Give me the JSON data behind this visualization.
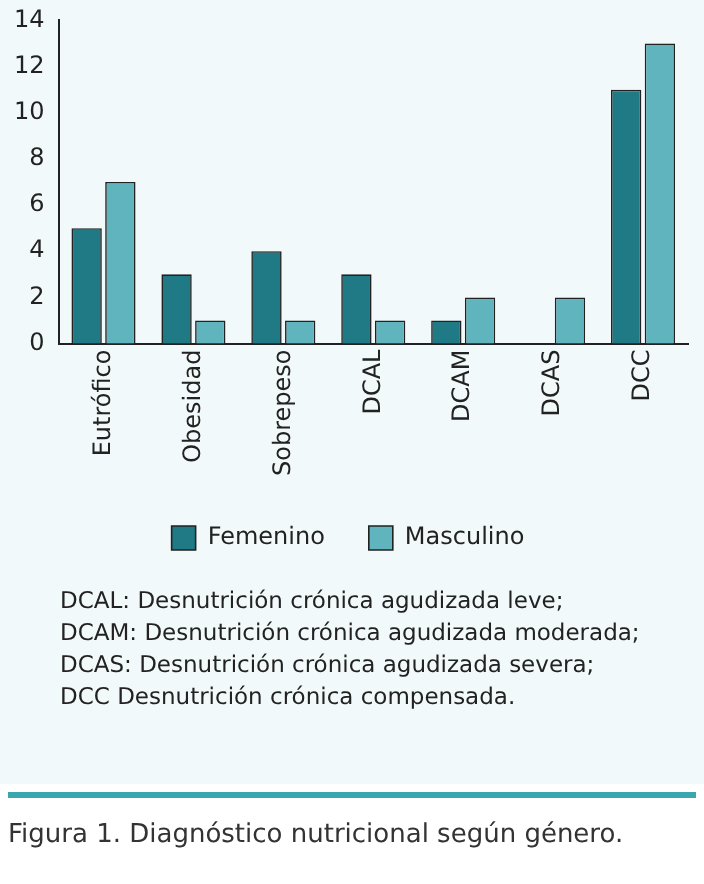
{
  "chart_data": {
    "type": "bar",
    "title": "Figura 1. Diagnóstico nutricional según género.",
    "categories": [
      "Eutrófico",
      "Obesidad",
      "Sobrepeso",
      "DCAL",
      "DCAM",
      "DCAS",
      "DCC"
    ],
    "series": [
      {
        "name": "Femenino",
        "color": "#1f7a86",
        "values": [
          5,
          3,
          4,
          3,
          1,
          0,
          11
        ]
      },
      {
        "name": "Masculino",
        "color": "#5fb4be",
        "values": [
          7,
          1,
          1,
          1,
          2,
          2,
          13
        ]
      }
    ],
    "ylim": [
      0,
      14
    ],
    "yticks": [
      0,
      2,
      4,
      6,
      8,
      10,
      12,
      14
    ],
    "grid": false,
    "legend": "bottom",
    "annotations": [
      "DCAL: Desnutrición crónica agudizada leve;",
      "DCAM: Desnutrición crónica agudizada moderada;",
      "DCAS: Desnutrición crónica agudizada severa;",
      "DCC Desnutrición crónica compensada."
    ]
  }
}
